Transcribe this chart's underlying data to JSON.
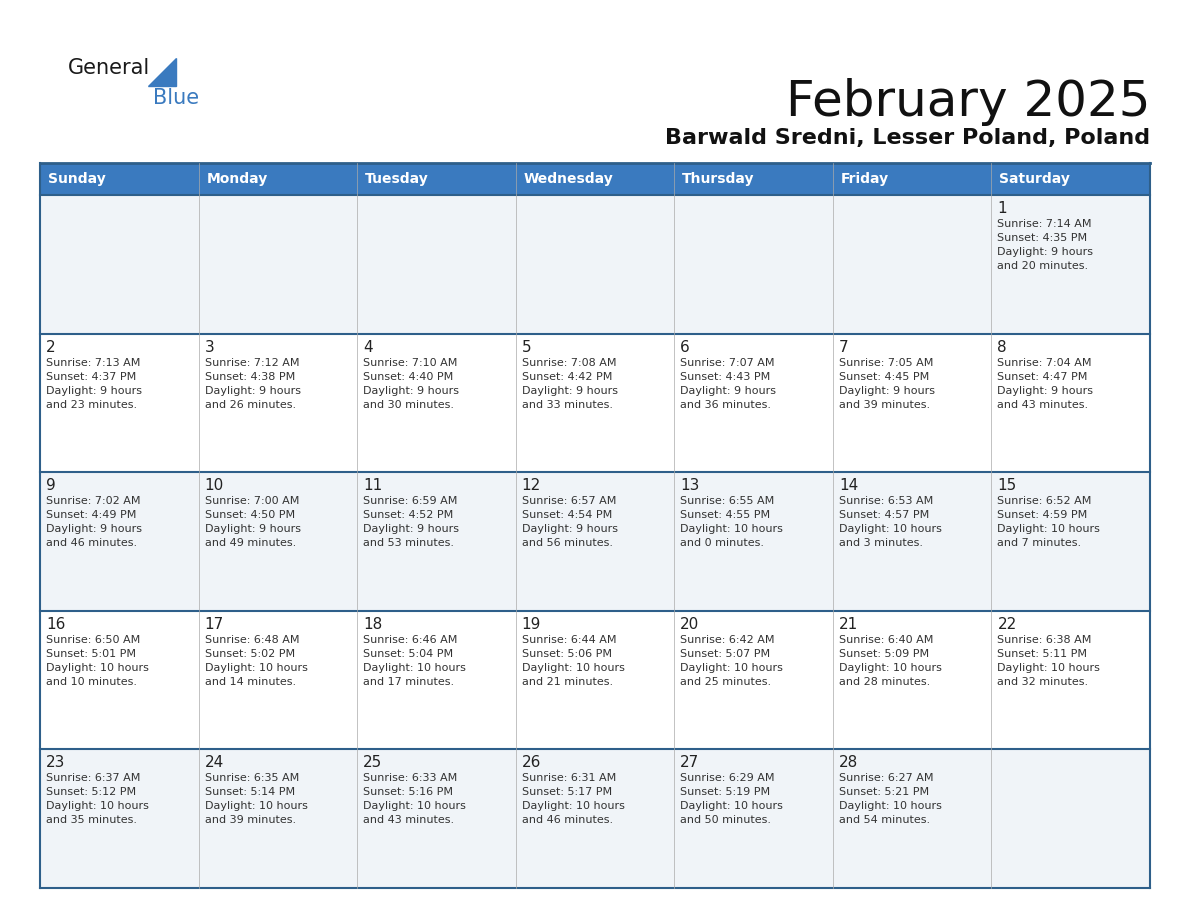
{
  "title": "February 2025",
  "subtitle": "Barwald Sredni, Lesser Poland, Poland",
  "header_bg": "#3a7abf",
  "header_text": "#ffffff",
  "border_color": "#2e5f8a",
  "day_names": [
    "Sunday",
    "Monday",
    "Tuesday",
    "Wednesday",
    "Thursday",
    "Friday",
    "Saturday"
  ],
  "row_bg": [
    "#f0f4f8",
    "#ffffff",
    "#f0f4f8",
    "#ffffff",
    "#f0f4f8"
  ],
  "weeks": [
    [
      {
        "day": null,
        "info": null
      },
      {
        "day": null,
        "info": null
      },
      {
        "day": null,
        "info": null
      },
      {
        "day": null,
        "info": null
      },
      {
        "day": null,
        "info": null
      },
      {
        "day": null,
        "info": null
      },
      {
        "day": 1,
        "info": "Sunrise: 7:14 AM\nSunset: 4:35 PM\nDaylight: 9 hours\nand 20 minutes."
      }
    ],
    [
      {
        "day": 2,
        "info": "Sunrise: 7:13 AM\nSunset: 4:37 PM\nDaylight: 9 hours\nand 23 minutes."
      },
      {
        "day": 3,
        "info": "Sunrise: 7:12 AM\nSunset: 4:38 PM\nDaylight: 9 hours\nand 26 minutes."
      },
      {
        "day": 4,
        "info": "Sunrise: 7:10 AM\nSunset: 4:40 PM\nDaylight: 9 hours\nand 30 minutes."
      },
      {
        "day": 5,
        "info": "Sunrise: 7:08 AM\nSunset: 4:42 PM\nDaylight: 9 hours\nand 33 minutes."
      },
      {
        "day": 6,
        "info": "Sunrise: 7:07 AM\nSunset: 4:43 PM\nDaylight: 9 hours\nand 36 minutes."
      },
      {
        "day": 7,
        "info": "Sunrise: 7:05 AM\nSunset: 4:45 PM\nDaylight: 9 hours\nand 39 minutes."
      },
      {
        "day": 8,
        "info": "Sunrise: 7:04 AM\nSunset: 4:47 PM\nDaylight: 9 hours\nand 43 minutes."
      }
    ],
    [
      {
        "day": 9,
        "info": "Sunrise: 7:02 AM\nSunset: 4:49 PM\nDaylight: 9 hours\nand 46 minutes."
      },
      {
        "day": 10,
        "info": "Sunrise: 7:00 AM\nSunset: 4:50 PM\nDaylight: 9 hours\nand 49 minutes."
      },
      {
        "day": 11,
        "info": "Sunrise: 6:59 AM\nSunset: 4:52 PM\nDaylight: 9 hours\nand 53 minutes."
      },
      {
        "day": 12,
        "info": "Sunrise: 6:57 AM\nSunset: 4:54 PM\nDaylight: 9 hours\nand 56 minutes."
      },
      {
        "day": 13,
        "info": "Sunrise: 6:55 AM\nSunset: 4:55 PM\nDaylight: 10 hours\nand 0 minutes."
      },
      {
        "day": 14,
        "info": "Sunrise: 6:53 AM\nSunset: 4:57 PM\nDaylight: 10 hours\nand 3 minutes."
      },
      {
        "day": 15,
        "info": "Sunrise: 6:52 AM\nSunset: 4:59 PM\nDaylight: 10 hours\nand 7 minutes."
      }
    ],
    [
      {
        "day": 16,
        "info": "Sunrise: 6:50 AM\nSunset: 5:01 PM\nDaylight: 10 hours\nand 10 minutes."
      },
      {
        "day": 17,
        "info": "Sunrise: 6:48 AM\nSunset: 5:02 PM\nDaylight: 10 hours\nand 14 minutes."
      },
      {
        "day": 18,
        "info": "Sunrise: 6:46 AM\nSunset: 5:04 PM\nDaylight: 10 hours\nand 17 minutes."
      },
      {
        "day": 19,
        "info": "Sunrise: 6:44 AM\nSunset: 5:06 PM\nDaylight: 10 hours\nand 21 minutes."
      },
      {
        "day": 20,
        "info": "Sunrise: 6:42 AM\nSunset: 5:07 PM\nDaylight: 10 hours\nand 25 minutes."
      },
      {
        "day": 21,
        "info": "Sunrise: 6:40 AM\nSunset: 5:09 PM\nDaylight: 10 hours\nand 28 minutes."
      },
      {
        "day": 22,
        "info": "Sunrise: 6:38 AM\nSunset: 5:11 PM\nDaylight: 10 hours\nand 32 minutes."
      }
    ],
    [
      {
        "day": 23,
        "info": "Sunrise: 6:37 AM\nSunset: 5:12 PM\nDaylight: 10 hours\nand 35 minutes."
      },
      {
        "day": 24,
        "info": "Sunrise: 6:35 AM\nSunset: 5:14 PM\nDaylight: 10 hours\nand 39 minutes."
      },
      {
        "day": 25,
        "info": "Sunrise: 6:33 AM\nSunset: 5:16 PM\nDaylight: 10 hours\nand 43 minutes."
      },
      {
        "day": 26,
        "info": "Sunrise: 6:31 AM\nSunset: 5:17 PM\nDaylight: 10 hours\nand 46 minutes."
      },
      {
        "day": 27,
        "info": "Sunrise: 6:29 AM\nSunset: 5:19 PM\nDaylight: 10 hours\nand 50 minutes."
      },
      {
        "day": 28,
        "info": "Sunrise: 6:27 AM\nSunset: 5:21 PM\nDaylight: 10 hours\nand 54 minutes."
      },
      {
        "day": null,
        "info": null
      }
    ]
  ]
}
